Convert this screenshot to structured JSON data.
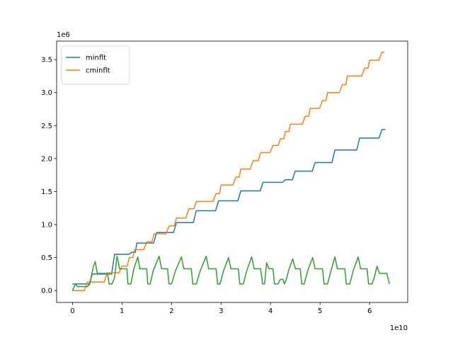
{
  "chart_data": {
    "type": "line",
    "title": "",
    "xlabel": "",
    "ylabel": "",
    "x_offset_label": "1e10",
    "y_offset_label": "1e6",
    "xlim": [
      -0.32,
      6.77
    ],
    "ylim": [
      -0.18,
      3.78
    ],
    "x_ticks": [
      0,
      1,
      2,
      3,
      4,
      5,
      6
    ],
    "x_tick_labels": [
      "0",
      "1",
      "2",
      "3",
      "4",
      "5",
      "6"
    ],
    "y_ticks": [
      0,
      0.5,
      1,
      1.5,
      2,
      2.5,
      3,
      3.5
    ],
    "y_tick_labels": [
      "0.0",
      "0.5",
      "1.0",
      "1.5",
      "2.0",
      "2.5",
      "3.0",
      "3.5"
    ],
    "grid": false,
    "legend": {
      "placement": "top-left",
      "entries": [
        "minflt",
        "cminflt"
      ]
    },
    "series": [
      {
        "name": "minflt",
        "color": "#1f77b4",
        "steps": [
          [
            0.0,
            0.1
          ],
          [
            0.4,
            0.25
          ],
          [
            0.85,
            0.55
          ],
          [
            1.2,
            0.58
          ],
          [
            1.3,
            0.72
          ],
          [
            1.7,
            0.88
          ],
          [
            2.1,
            1.03
          ],
          [
            2.5,
            1.21
          ],
          [
            2.95,
            1.36
          ],
          [
            3.4,
            1.51
          ],
          [
            3.85,
            1.64
          ],
          [
            4.3,
            1.68
          ],
          [
            4.5,
            1.81
          ],
          [
            4.9,
            1.94
          ],
          [
            5.3,
            2.13
          ],
          [
            5.8,
            2.31
          ],
          [
            6.25,
            2.44
          ],
          [
            6.32,
            2.44
          ]
        ]
      },
      {
        "name": "cminflt",
        "color": "#ff7f0e",
        "steps": [
          [
            0.0,
            0.0
          ],
          [
            0.3,
            0.13
          ],
          [
            0.7,
            0.27
          ],
          [
            1.0,
            0.37
          ],
          [
            1.15,
            0.5
          ],
          [
            1.25,
            0.62
          ],
          [
            1.5,
            0.74
          ],
          [
            1.65,
            0.86
          ],
          [
            1.95,
            0.98
          ],
          [
            2.1,
            1.1
          ],
          [
            2.35,
            1.24
          ],
          [
            2.5,
            1.35
          ],
          [
            2.9,
            1.47
          ],
          [
            3.0,
            1.6
          ],
          [
            3.3,
            1.72
          ],
          [
            3.4,
            1.84
          ],
          [
            3.65,
            1.97
          ],
          [
            3.8,
            2.09
          ],
          [
            4.05,
            2.2
          ],
          [
            4.2,
            2.3
          ],
          [
            4.3,
            2.41
          ],
          [
            4.4,
            2.52
          ],
          [
            4.7,
            2.64
          ],
          [
            4.8,
            2.76
          ],
          [
            5.05,
            2.88
          ],
          [
            5.15,
            3.0
          ],
          [
            5.45,
            3.12
          ],
          [
            5.55,
            3.25
          ],
          [
            5.9,
            3.37
          ],
          [
            6.0,
            3.49
          ],
          [
            6.25,
            3.61
          ],
          [
            6.3,
            3.61
          ]
        ]
      },
      {
        "name": "",
        "color": "#2ca02c",
        "points": [
          [
            0.0,
            0.0
          ],
          [
            0.06,
            0.1
          ],
          [
            0.1,
            0.06
          ],
          [
            0.3,
            0.06
          ],
          [
            0.35,
            0.1
          ],
          [
            0.42,
            0.36
          ],
          [
            0.46,
            0.44
          ],
          [
            0.5,
            0.26
          ],
          [
            0.7,
            0.26
          ],
          [
            0.72,
            0.2
          ],
          [
            0.74,
            0.1
          ],
          [
            0.8,
            0.1
          ],
          [
            0.85,
            0.2
          ],
          [
            0.9,
            0.52
          ],
          [
            0.93,
            0.42
          ],
          [
            0.95,
            0.33
          ],
          [
            1.1,
            0.33
          ],
          [
            1.12,
            0.1
          ],
          [
            1.18,
            0.1
          ],
          [
            1.24,
            0.33
          ],
          [
            1.32,
            0.51
          ],
          [
            1.36,
            0.33
          ],
          [
            1.5,
            0.33
          ],
          [
            1.52,
            0.1
          ],
          [
            1.57,
            0.1
          ],
          [
            1.63,
            0.3
          ],
          [
            1.75,
            0.52
          ],
          [
            1.8,
            0.33
          ],
          [
            1.92,
            0.33
          ],
          [
            1.95,
            0.1
          ],
          [
            2.0,
            0.1
          ],
          [
            2.08,
            0.3
          ],
          [
            2.2,
            0.51
          ],
          [
            2.25,
            0.33
          ],
          [
            2.4,
            0.33
          ],
          [
            2.43,
            0.1
          ],
          [
            2.5,
            0.1
          ],
          [
            2.58,
            0.3
          ],
          [
            2.7,
            0.52
          ],
          [
            2.75,
            0.33
          ],
          [
            2.9,
            0.33
          ],
          [
            2.93,
            0.1
          ],
          [
            2.98,
            0.1
          ],
          [
            3.05,
            0.3
          ],
          [
            3.15,
            0.5
          ],
          [
            3.2,
            0.33
          ],
          [
            3.35,
            0.33
          ],
          [
            3.38,
            0.1
          ],
          [
            3.45,
            0.1
          ],
          [
            3.52,
            0.3
          ],
          [
            3.62,
            0.51
          ],
          [
            3.67,
            0.33
          ],
          [
            3.8,
            0.33
          ],
          [
            3.84,
            0.1
          ],
          [
            3.88,
            0.1
          ],
          [
            3.92,
            0.42
          ],
          [
            3.97,
            0.33
          ],
          [
            4.05,
            0.33
          ],
          [
            4.08,
            0.1
          ],
          [
            4.15,
            0.1
          ],
          [
            4.2,
            0.17
          ],
          [
            4.25,
            0.17
          ],
          [
            4.28,
            0.1
          ],
          [
            4.32,
            0.17
          ],
          [
            4.37,
            0.32
          ],
          [
            4.45,
            0.48
          ],
          [
            4.5,
            0.33
          ],
          [
            4.6,
            0.33
          ],
          [
            4.63,
            0.1
          ],
          [
            4.68,
            0.1
          ],
          [
            4.75,
            0.3
          ],
          [
            4.85,
            0.5
          ],
          [
            4.9,
            0.33
          ],
          [
            5.05,
            0.33
          ],
          [
            5.08,
            0.1
          ],
          [
            5.15,
            0.1
          ],
          [
            5.22,
            0.3
          ],
          [
            5.3,
            0.51
          ],
          [
            5.35,
            0.33
          ],
          [
            5.5,
            0.33
          ],
          [
            5.53,
            0.1
          ],
          [
            5.6,
            0.1
          ],
          [
            5.67,
            0.3
          ],
          [
            5.77,
            0.51
          ],
          [
            5.82,
            0.33
          ],
          [
            5.95,
            0.33
          ],
          [
            5.98,
            0.1
          ],
          [
            6.05,
            0.1
          ],
          [
            6.1,
            0.21
          ],
          [
            6.15,
            0.37
          ],
          [
            6.2,
            0.26
          ],
          [
            6.35,
            0.26
          ],
          [
            6.4,
            0.1
          ]
        ]
      }
    ]
  }
}
